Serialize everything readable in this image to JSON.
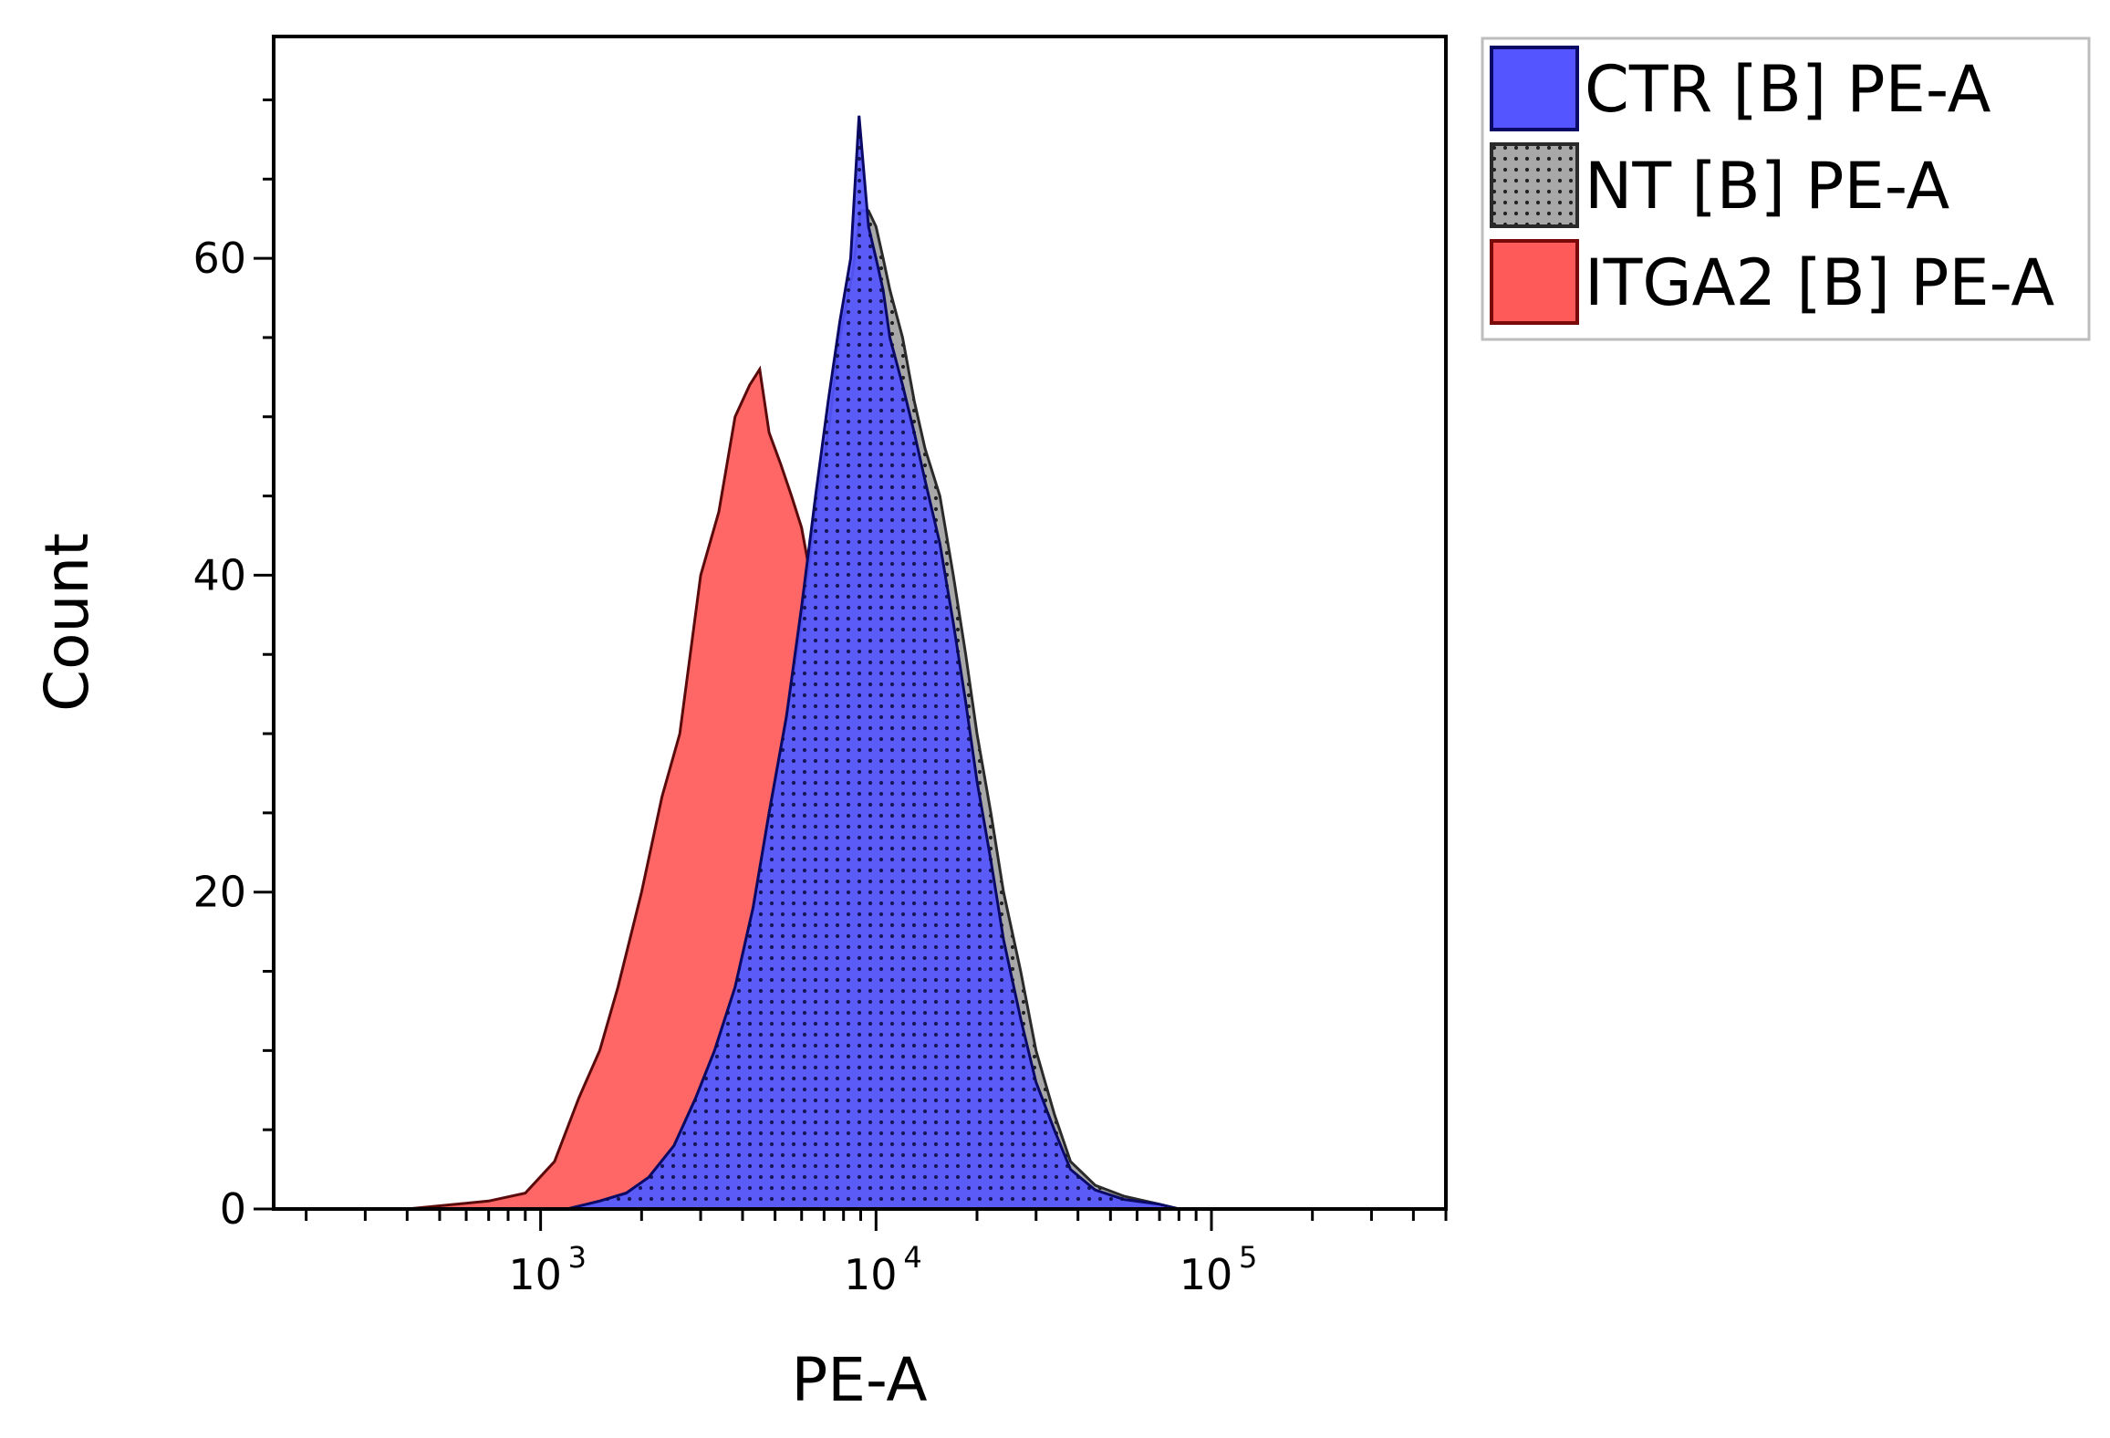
{
  "chart_data": {
    "type": "histogram",
    "title": "",
    "xlabel": "PE-A",
    "ylabel": "Count",
    "xscale": "log",
    "xlim": [
      160,
      500000
    ],
    "ylim": [
      0,
      74
    ],
    "grid": false,
    "y_ticks": [
      {
        "value": 0,
        "label": "0"
      },
      {
        "value": 20,
        "label": "20"
      },
      {
        "value": 40,
        "label": "40"
      },
      {
        "value": 60,
        "label": "60"
      }
    ],
    "x_ticks": [
      {
        "value": 1000,
        "base": "10",
        "exp": "3"
      },
      {
        "value": 10000,
        "base": "10",
        "exp": "4"
      },
      {
        "value": 100000,
        "base": "10",
        "exp": "5"
      }
    ],
    "legend_position": "outside-top-right",
    "series": [
      {
        "name": "ITGA2 [B] PE-A",
        "fill": "#ff5a5a",
        "stroke": "#5a0a0a",
        "pattern": "none",
        "x": [
          400,
          700,
          900,
          1100,
          1300,
          1500,
          1700,
          2000,
          2300,
          2600,
          3000,
          3400,
          3800,
          4200,
          4500,
          4800,
          5200,
          5600,
          6000,
          6500,
          7000,
          7500,
          8000,
          8500,
          9000,
          10000,
          11000,
          12000,
          13000,
          14000,
          16000,
          18000,
          20000,
          23000,
          26000,
          30000,
          35000,
          40000
        ],
        "values": [
          0,
          0.5,
          1,
          3,
          7,
          10,
          14,
          20,
          26,
          30,
          40,
          44,
          50,
          52,
          53,
          49,
          47,
          45,
          43,
          39,
          36,
          37,
          35,
          32,
          30,
          26,
          22,
          19,
          16,
          13,
          10,
          7,
          5,
          3,
          2,
          1,
          0.5,
          0
        ]
      },
      {
        "name": "NT [B] PE-A",
        "fill": "#a8a8a8",
        "stroke": "#2a2a2a",
        "pattern": "dots",
        "x": [
          1200,
          1500,
          1800,
          2100,
          2500,
          2900,
          3300,
          3800,
          4300,
          4800,
          5400,
          6000,
          6600,
          7200,
          7800,
          8500,
          9000,
          9500,
          10000,
          10500,
          11000,
          12000,
          13000,
          14000,
          15500,
          17000,
          18500,
          20000,
          22000,
          24000,
          27000,
          30000,
          34000,
          38000,
          45000,
          55000,
          70000,
          80000
        ],
        "values": [
          0,
          0.5,
          1,
          2,
          4,
          7,
          10,
          14,
          19,
          25,
          31,
          37,
          44,
          49,
          55,
          59,
          63,
          63,
          62,
          60,
          58,
          55,
          51,
          48,
          45,
          40,
          35,
          30,
          25,
          20,
          15,
          10,
          6,
          3,
          1.5,
          0.8,
          0.3,
          0
        ]
      },
      {
        "name": "CTR [B] PE-A",
        "fill": "#5555ff",
        "stroke": "#0a0a66",
        "pattern": "none",
        "x": [
          1200,
          1500,
          1800,
          2100,
          2500,
          2900,
          3300,
          3800,
          4300,
          4800,
          5400,
          6000,
          6600,
          7200,
          7800,
          8400,
          8900,
          9500,
          10000,
          10500,
          11000,
          12000,
          13000,
          14000,
          15500,
          17000,
          18500,
          20000,
          22000,
          24000,
          27000,
          30000,
          34000,
          38000,
          45000,
          55000,
          70000,
          80000
        ],
        "values": [
          0,
          0.5,
          1,
          2,
          4,
          7,
          10,
          14,
          19,
          25,
          31,
          38,
          45,
          51,
          56,
          60,
          69,
          62,
          60,
          58,
          55,
          52,
          49,
          46,
          42,
          37,
          32,
          27,
          22,
          17,
          12,
          8,
          5,
          2.5,
          1.2,
          0.6,
          0.3,
          0
        ]
      }
    ]
  },
  "legend": {
    "items": [
      {
        "label": "CTR [B] PE-A",
        "color": "#5555ff",
        "border": "#0a0a66"
      },
      {
        "label": "NT [B] PE-A",
        "color": "#a8a8a8",
        "border": "#2a2a2a"
      },
      {
        "label": "ITGA2 [B] PE-A",
        "color": "#ff5a5a",
        "border": "#7a0a0a"
      }
    ]
  }
}
